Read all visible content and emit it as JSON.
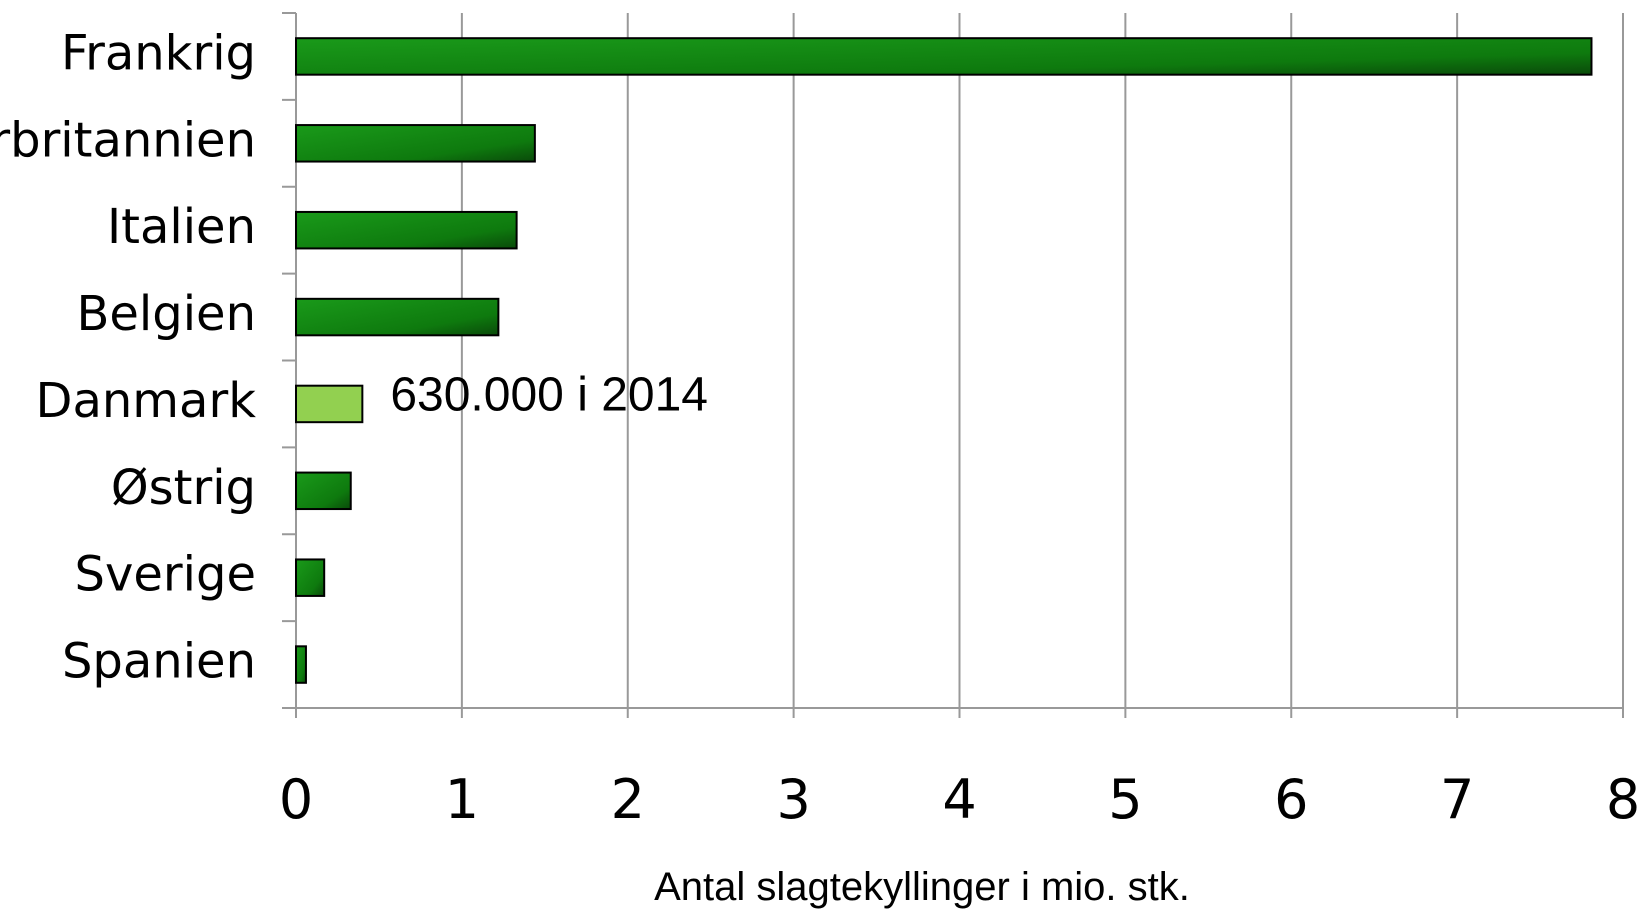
{
  "chart_data": {
    "type": "bar",
    "orientation": "horizontal",
    "categories": [
      "Frankrig",
      "Storbritannien",
      "Italien",
      "Belgien",
      "Danmark",
      "Østrig",
      "Sverige",
      "Spanien"
    ],
    "values": [
      7.81,
      1.44,
      1.33,
      1.22,
      0.4,
      0.33,
      0.17,
      0.06
    ],
    "colors": [
      "#128212",
      "#128212",
      "#128212",
      "#128212",
      "#92d050",
      "#128212",
      "#128212",
      "#128212"
    ],
    "xlim": [
      0,
      8
    ],
    "xticks": [
      0,
      1,
      2,
      3,
      4,
      5,
      6,
      7,
      8
    ],
    "grid": true,
    "x_label": "Antal slagtekyllinger i mio. stk.",
    "annotations": [
      {
        "text": "630.000 i 2014",
        "category": "Danmark"
      }
    ]
  }
}
